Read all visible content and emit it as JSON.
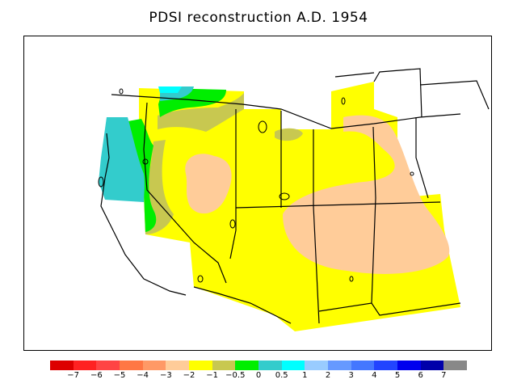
{
  "title": "PDSI reconstruction A.D. 1954",
  "colors": {
    "c_m3_m2": "#ffcc99",
    "c_m2_m1": "#ffff00",
    "c_m1_m05": "#c8c850",
    "c_m05_0": "#00ee00",
    "c_0_05": "#33cccc",
    "c_05_1": "#00ffff",
    "outline": "#000000"
  },
  "legend": {
    "colors": [
      "#dd0000",
      "#ff2222",
      "#ff4444",
      "#ff7744",
      "#ff9966",
      "#ffcc99",
      "#ffff00",
      "#c8c850",
      "#00ee00",
      "#33cccc",
      "#00ffff",
      "#99ccff",
      "#6699ff",
      "#4477ff",
      "#2244ff",
      "#0000ee",
      "#0000aa",
      "#888888"
    ],
    "labels": [
      "−7",
      "−6",
      "−5",
      "−4",
      "−3",
      "−2",
      "−1",
      "−0.5",
      "0",
      "0.5",
      "1",
      "2",
      "3",
      "4",
      "5",
      "6",
      "7"
    ]
  }
}
